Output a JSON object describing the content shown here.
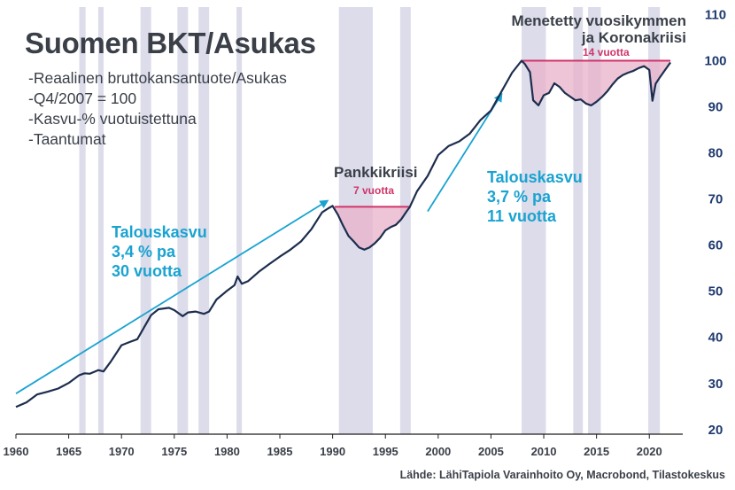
{
  "title": "Suomen BKT/Asukas",
  "bullets": [
    "-Reaalinen bruttokansantuote/Asukas",
    "-Q4/2007 = 100",
    "-Kasvu-% vuotuistettuna",
    "-Taantumat"
  ],
  "annotations": {
    "growth1": [
      "Talouskasvu",
      "3,4 % pa",
      "30 vuotta"
    ],
    "growth2": [
      "Talouskasvu",
      "3,7 % pa",
      "11 vuotta"
    ],
    "crisis1": "Pankkikriisi",
    "crisis1_duration": "7 vuotta",
    "crisis2": [
      "Menetetty vuosikymmen",
      "ja Koronakriisi"
    ],
    "crisis2_duration": "14 vuotta"
  },
  "source": "Lähde: LähiTapiola Varainhoito Oy, Macrobond, Tilastokeskus",
  "colors": {
    "line": "#1c2d4e",
    "recession": "#dcdcea",
    "gap_fill": "#e8b2c8",
    "gap_line": "#d1356a",
    "growth_arrow": "#1aa3d1",
    "text": "#3a3f48"
  },
  "chart_data": {
    "type": "line",
    "xlim": [
      1960,
      2023
    ],
    "ylim": [
      19,
      112
    ],
    "x_ticks": [
      1960,
      1965,
      1970,
      1975,
      1980,
      1985,
      1990,
      1995,
      2000,
      2005,
      2010,
      2015,
      2020
    ],
    "y_ticks": [
      20,
      30,
      40,
      50,
      60,
      70,
      80,
      90,
      100,
      110
    ],
    "y_axis_side": "right",
    "recessions": [
      [
        1966.0,
        1966.6
      ],
      [
        1967.8,
        1968.3
      ],
      [
        1971.8,
        1972.8
      ],
      [
        1975.3,
        1976.3
      ],
      [
        1977.3,
        1978.3
      ],
      [
        1980.9,
        1981.4
      ],
      [
        1990.6,
        1993.8
      ],
      [
        1996.4,
        1997.4
      ],
      [
        2007.9,
        2010.2
      ],
      [
        2012.8,
        2013.7
      ],
      [
        2014.2,
        2015.4
      ],
      [
        2019.9,
        2021.0
      ]
    ],
    "gaps": [
      {
        "start": 1990.2,
        "end": 1997.3,
        "level": 68.3
      },
      {
        "start": 2008.0,
        "end": 2022.0,
        "level": 100
      }
    ],
    "growth_arrows": [
      {
        "from": [
          1960,
          27.8
        ],
        "to": [
          1989.5,
          69.6
        ]
      },
      {
        "from": [
          1999.0,
          67.3
        ],
        "to": [
          2006.0,
          92.7
        ]
      }
    ],
    "series": [
      {
        "x": [
          1960,
          1961,
          1962,
          1963,
          1964,
          1965,
          1966,
          1966.5,
          1967,
          1967.8,
          1968.3,
          1969,
          1970,
          1970.8,
          1971.5,
          1972,
          1972.8,
          1973.5,
          1974.5,
          1975,
          1975.8,
          1976.3,
          1977,
          1977.8,
          1978.3,
          1979,
          1980,
          1980.7,
          1981,
          1981.4,
          1982,
          1983,
          1984,
          1985,
          1986,
          1987,
          1988,
          1989,
          1989.6,
          1990,
          1990.5,
          1991,
          1991.5,
          1992,
          1992.5,
          1993,
          1993.5,
          1994,
          1994.5,
          1995,
          1995.5,
          1996,
          1996.5,
          1997,
          1997.3,
          1998,
          1999,
          2000,
          2001,
          2002,
          2003,
          2004,
          2005,
          2006,
          2007,
          2007.9,
          2008.2,
          2008.7,
          2009,
          2009.5,
          2010,
          2010.5,
          2011,
          2011.5,
          2012,
          2012.5,
          2013,
          2013.5,
          2014,
          2014.5,
          2015,
          2015.5,
          2016,
          2016.5,
          2017,
          2017.5,
          2018,
          2018.5,
          2019,
          2019.5,
          2020,
          2020.3,
          2020.6,
          2021,
          2021.5,
          2022
        ],
        "values": [
          24.9,
          25.9,
          27.6,
          28.2,
          28.9,
          30.1,
          31.8,
          32.2,
          32.1,
          32.9,
          32.6,
          34.8,
          38.3,
          39.0,
          39.6,
          41.6,
          44.8,
          46.1,
          46.4,
          45.9,
          44.6,
          45.4,
          45.6,
          45.1,
          45.6,
          48.2,
          50.1,
          51.3,
          53.2,
          51.6,
          52.2,
          54.2,
          55.9,
          57.5,
          59.0,
          60.8,
          63.5,
          67.1,
          68.0,
          68.5,
          66.6,
          64.2,
          62.0,
          60.8,
          59.5,
          59.0,
          59.5,
          60.4,
          61.6,
          63.2,
          63.9,
          64.4,
          65.6,
          67.3,
          68.2,
          71.7,
          75.0,
          79.5,
          81.5,
          82.5,
          84.2,
          87.1,
          89.2,
          93.3,
          97.4,
          100.0,
          99.3,
          97.5,
          91.4,
          90.3,
          92.5,
          93.0,
          95.1,
          94.3,
          93.0,
          92.2,
          91.4,
          91.6,
          90.7,
          90.3,
          91.1,
          92.1,
          93.3,
          94.8,
          96.1,
          96.9,
          97.4,
          97.8,
          98.4,
          98.8,
          98.0,
          91.3,
          95.0,
          96.4,
          98.0,
          99.6
        ]
      }
    ]
  }
}
